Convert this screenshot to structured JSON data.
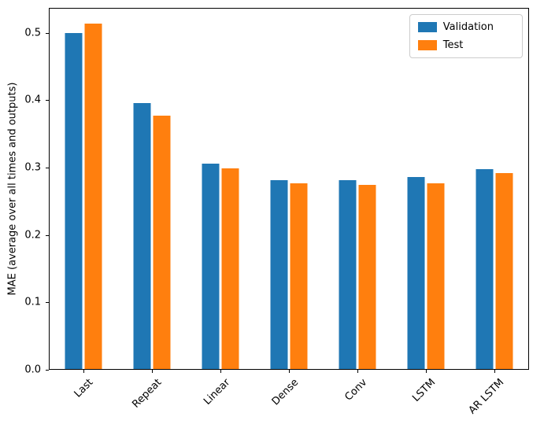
{
  "chart_data": {
    "type": "bar",
    "title": "",
    "xlabel": "",
    "ylabel": "MAE (average over all times and outputs)",
    "categories": [
      "Last",
      "Repeat",
      "Linear",
      "Dense",
      "Conv",
      "LSTM",
      "AR LSTM"
    ],
    "series": [
      {
        "name": "Validation",
        "color": "#1f77b4",
        "values": [
          0.501,
          0.396,
          0.306,
          0.281,
          0.281,
          0.286,
          0.298
        ]
      },
      {
        "name": "Test",
        "color": "#ff7f0e",
        "values": [
          0.515,
          0.377,
          0.299,
          0.277,
          0.274,
          0.277,
          0.292
        ]
      }
    ],
    "ylim": [
      0,
      0.537
    ],
    "yticks": [
      0.0,
      0.1,
      0.2,
      0.3,
      0.4,
      0.5
    ],
    "x_tick_rotation": 45,
    "grid": false,
    "legend": {
      "position": "upper right",
      "entries": [
        "Validation",
        "Test"
      ]
    }
  }
}
